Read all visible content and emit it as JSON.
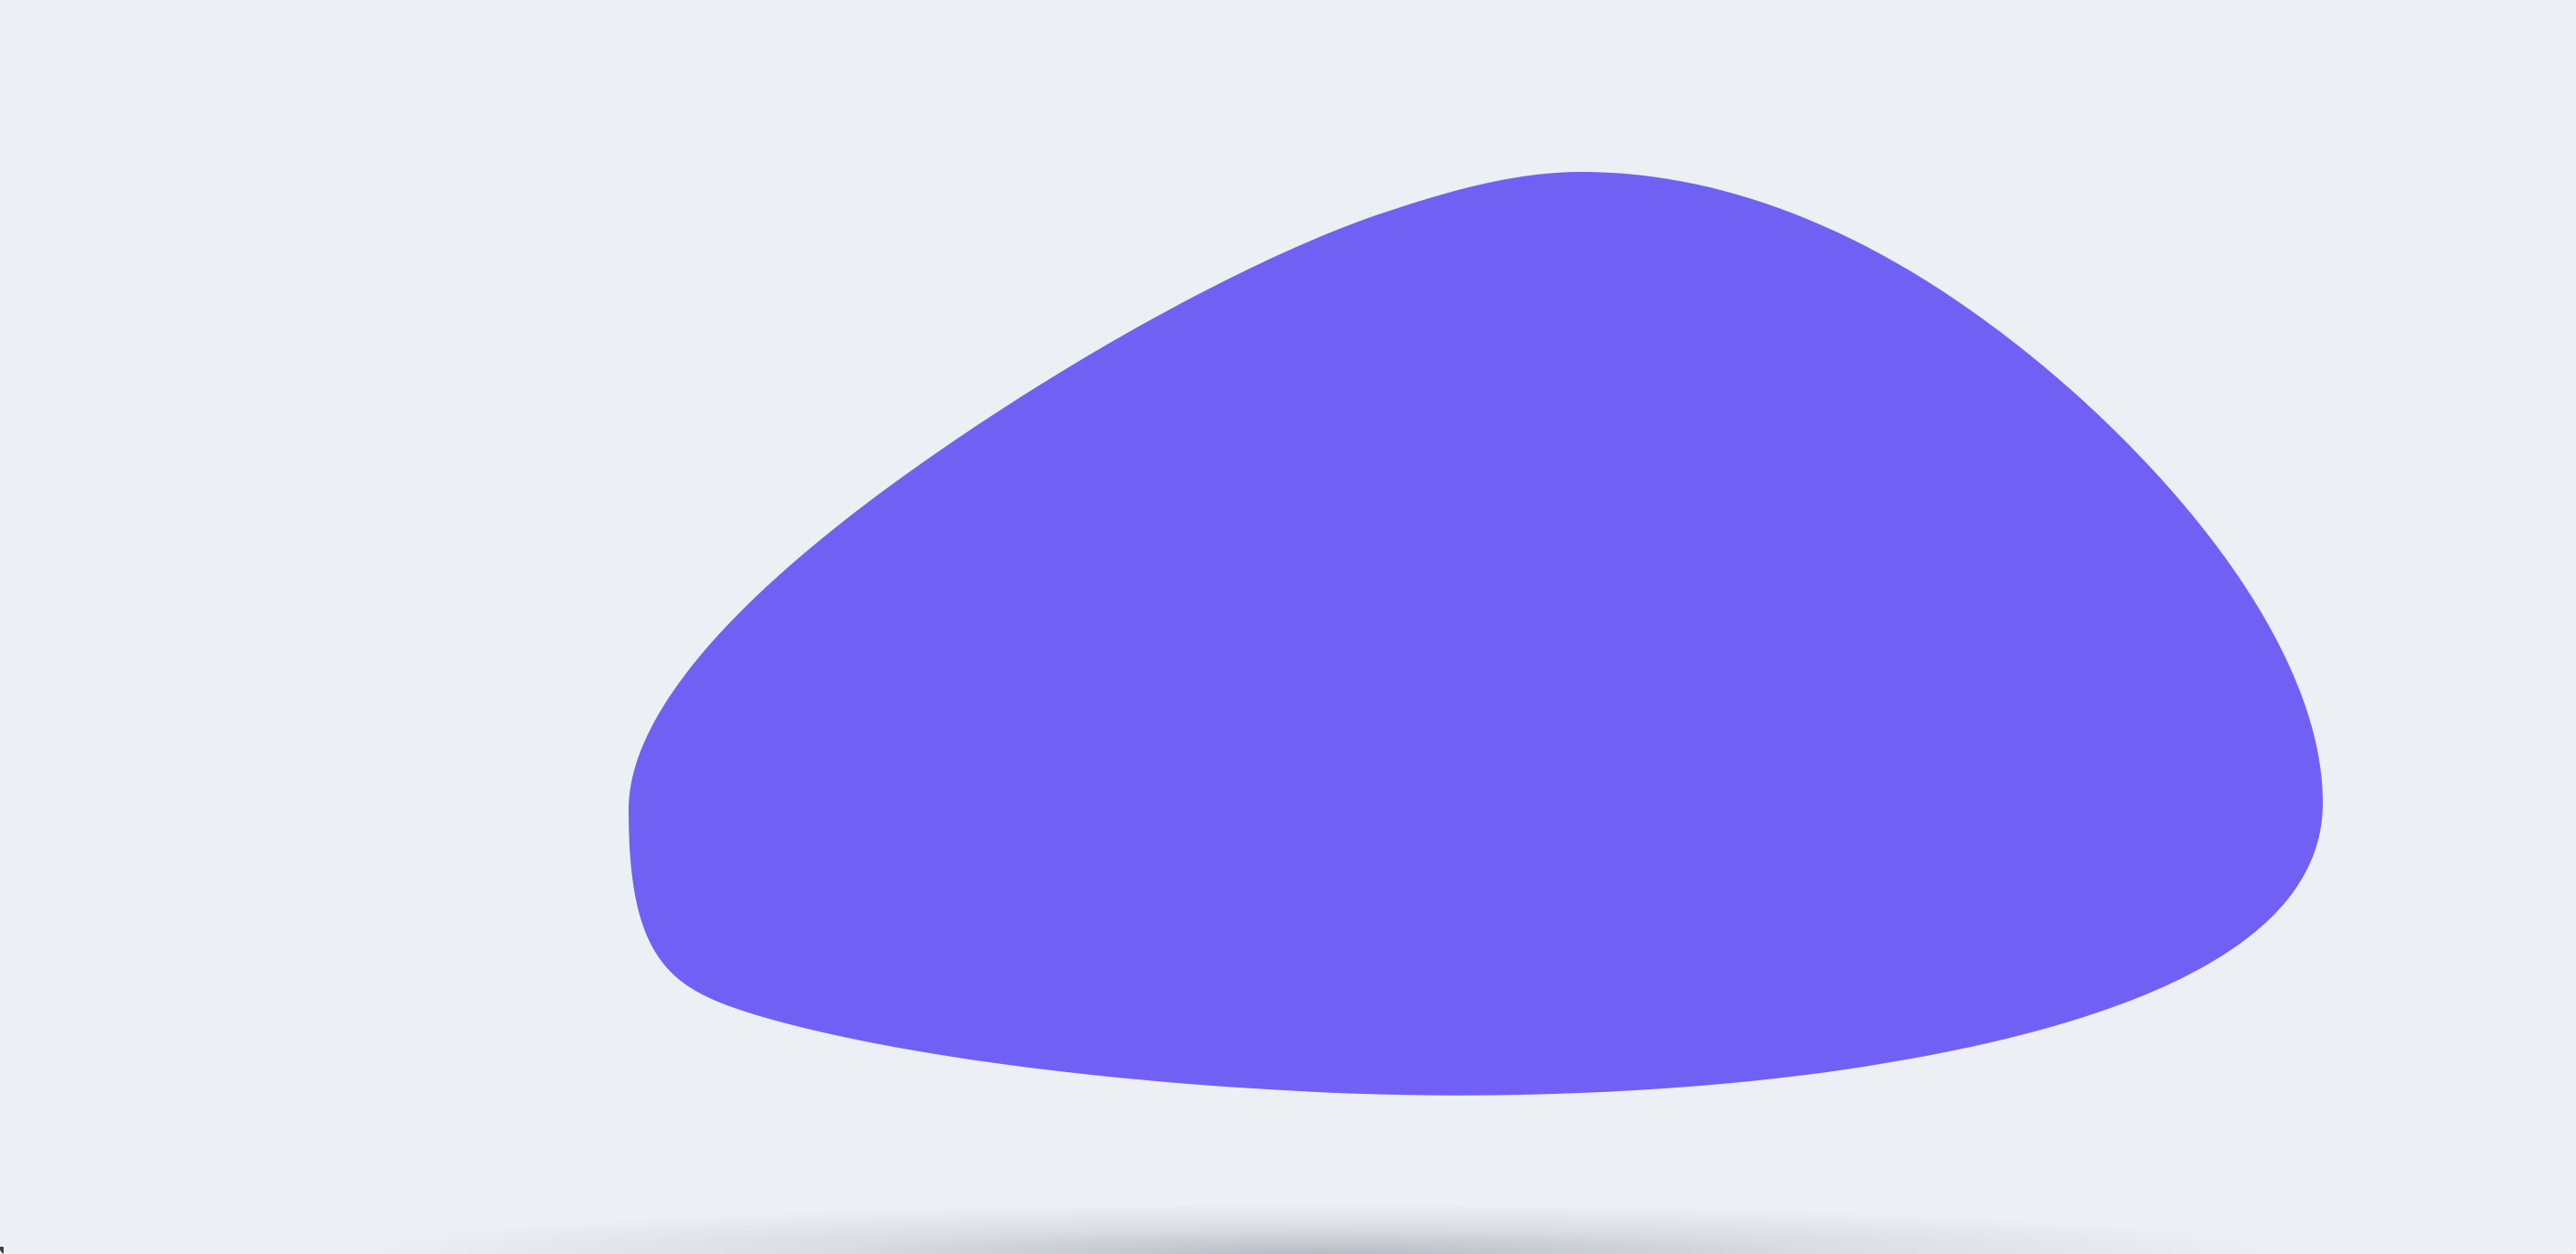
{
  "canvas": {
    "background_color": "#eceff3"
  },
  "blob": {
    "fill_color": "#7061f4",
    "shape": "rounded-triangle-blob"
  },
  "shadow": {
    "color": "#9aa0a8"
  }
}
